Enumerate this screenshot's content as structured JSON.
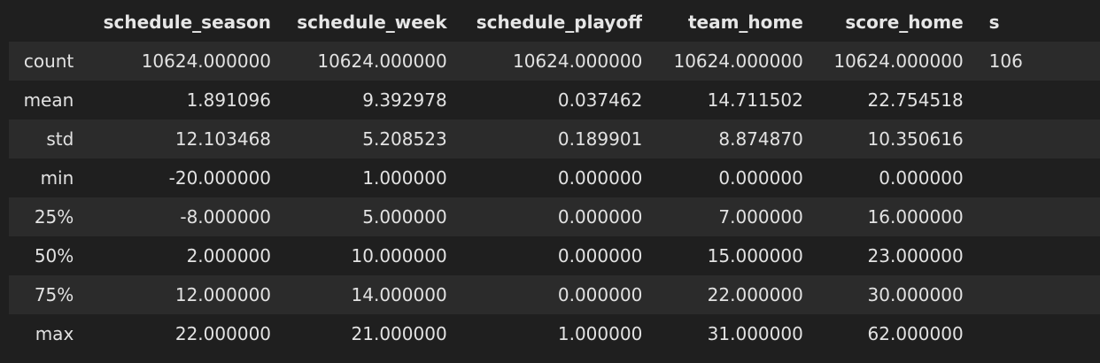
{
  "table": {
    "columns": [
      "",
      "schedule_season",
      "schedule_week",
      "schedule_playoff",
      "team_home",
      "score_home",
      "s"
    ],
    "rows": [
      {
        "index": "count",
        "values": [
          "10624.000000",
          "10624.000000",
          "10624.000000",
          "10624.000000",
          "10624.000000",
          "106"
        ]
      },
      {
        "index": "mean",
        "values": [
          "1.891096",
          "9.392978",
          "0.037462",
          "14.711502",
          "22.754518",
          ""
        ]
      },
      {
        "index": "std",
        "values": [
          "12.103468",
          "5.208523",
          "0.189901",
          "8.874870",
          "10.350616",
          ""
        ]
      },
      {
        "index": "min",
        "values": [
          "-20.000000",
          "1.000000",
          "0.000000",
          "0.000000",
          "0.000000",
          ""
        ]
      },
      {
        "index": "25%",
        "values": [
          "-8.000000",
          "5.000000",
          "0.000000",
          "7.000000",
          "16.000000",
          ""
        ]
      },
      {
        "index": "50%",
        "values": [
          "2.000000",
          "10.000000",
          "0.000000",
          "15.000000",
          "23.000000",
          ""
        ]
      },
      {
        "index": "75%",
        "values": [
          "12.000000",
          "14.000000",
          "0.000000",
          "22.000000",
          "30.000000",
          ""
        ]
      },
      {
        "index": "max",
        "values": [
          "22.000000",
          "21.000000",
          "1.000000",
          "31.000000",
          "62.000000",
          ""
        ]
      }
    ]
  }
}
